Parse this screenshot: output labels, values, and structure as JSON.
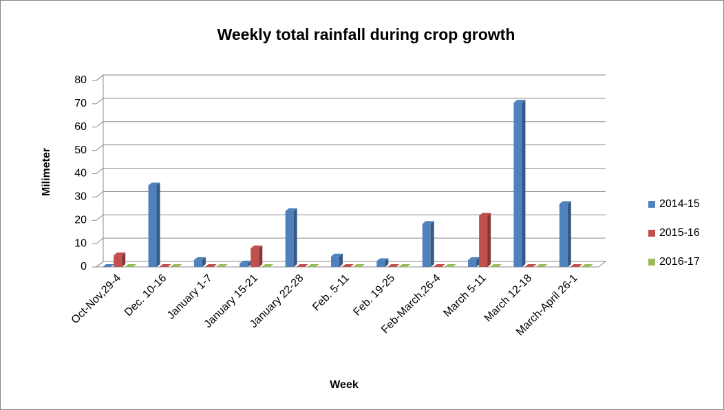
{
  "chart_data": {
    "type": "bar3d",
    "title": "Weekly total rainfall during crop growth",
    "x_label": "Week",
    "y_label": "Milimeter",
    "categories": [
      "Oct-Nov,29-4",
      "Dec. 10-16",
      "January 1-7",
      "January 15-21",
      "January 22-28",
      "Feb. 5-11",
      "Feb. 19-25",
      "Feb-March,26-4",
      "March 5-11",
      "March 12-18",
      "March-April 26-1"
    ],
    "series": [
      {
        "name": "2014-15",
        "color": "#4f81bd",
        "values": [
          0,
          35,
          3,
          1.5,
          24,
          4.5,
          2.5,
          18.5,
          3,
          70.5,
          27
        ]
      },
      {
        "name": "2015-16",
        "color": "#c0504d",
        "values": [
          5,
          0,
          0,
          8,
          0,
          0,
          0,
          0,
          22,
          0,
          0
        ]
      },
      {
        "name": "2016-17",
        "color": "#9bbb59",
        "values": [
          0,
          0,
          0,
          0,
          0,
          0,
          0,
          0,
          0,
          0,
          0
        ]
      }
    ],
    "ylim": [
      0,
      80
    ],
    "yticks": [
      0,
      10,
      20,
      30,
      40,
      50,
      60,
      70,
      80
    ],
    "grid": true,
    "legend": "right"
  }
}
